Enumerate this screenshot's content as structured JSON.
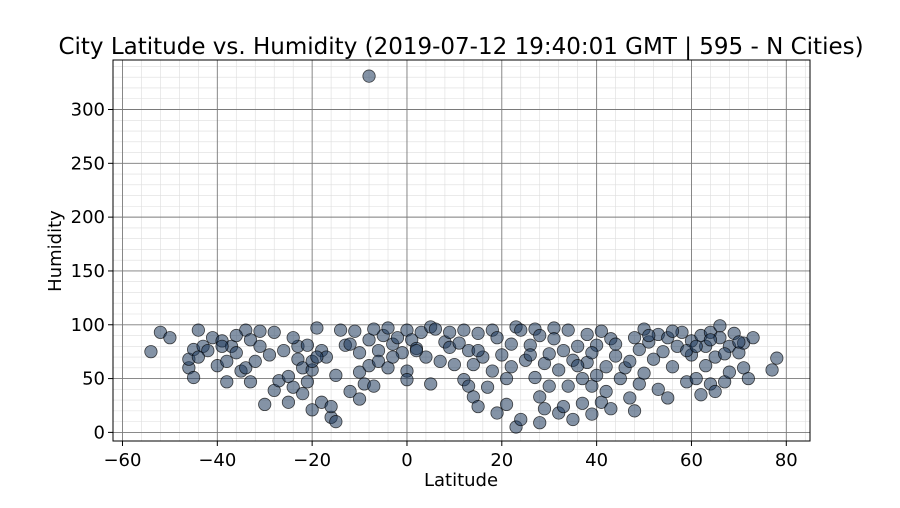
{
  "chart_data": {
    "type": "scatter",
    "title": "City Latitude vs. Humidity (2019-07-12 19:40:01 GMT | 595 - N Cities)",
    "xlabel": "Latitude",
    "ylabel": "Humidity",
    "xlim": [
      -62,
      85
    ],
    "ylim": [
      -8,
      346
    ],
    "xticks": [
      -60,
      -40,
      -20,
      0,
      20,
      40,
      60,
      80
    ],
    "xtick_labels": [
      "−60",
      "−40",
      "−20",
      "0",
      "20",
      "40",
      "60",
      "80"
    ],
    "yticks": [
      0,
      50,
      100,
      150,
      200,
      250,
      300
    ],
    "ytick_labels": [
      "0",
      "50",
      "100",
      "150",
      "200",
      "250",
      "300"
    ],
    "grid": true,
    "minor_grid": true,
    "marker_color": "#1f3b5c",
    "marker_edge_color": "#000000",
    "marker_alpha": 0.55,
    "points": [
      [
        -8,
        331
      ],
      [
        -54,
        75
      ],
      [
        -52,
        93
      ],
      [
        -50,
        88
      ],
      [
        -46,
        60
      ],
      [
        -46,
        68
      ],
      [
        -45,
        51
      ],
      [
        -45,
        77
      ],
      [
        -44,
        95
      ],
      [
        -43,
        80
      ],
      [
        -42,
        76
      ],
      [
        -41,
        88
      ],
      [
        -40,
        62
      ],
      [
        -39,
        85
      ],
      [
        -38,
        66
      ],
      [
        -38,
        47
      ],
      [
        -37,
        80
      ],
      [
        -36,
        74
      ],
      [
        -35,
        57
      ],
      [
        -34,
        95
      ],
      [
        -34,
        60
      ],
      [
        -33,
        47
      ],
      [
        -33,
        86
      ],
      [
        -32,
        66
      ],
      [
        -31,
        80
      ],
      [
        -31,
        94
      ],
      [
        -30,
        26
      ],
      [
        -29,
        72
      ],
      [
        -28,
        93
      ],
      [
        -28,
        39
      ],
      [
        -27,
        48
      ],
      [
        -26,
        76
      ],
      [
        -25,
        52
      ],
      [
        -25,
        28
      ],
      [
        -24,
        42
      ],
      [
        -23,
        68
      ],
      [
        -23,
        80
      ],
      [
        -22,
        36
      ],
      [
        -22,
        60
      ],
      [
        -21,
        47
      ],
      [
        -21,
        81
      ],
      [
        -20,
        21
      ],
      [
        -20,
        58
      ],
      [
        -20,
        66
      ],
      [
        -19,
        97
      ],
      [
        -18,
        28
      ],
      [
        -18,
        76
      ],
      [
        -17,
        70
      ],
      [
        -16,
        14
      ],
      [
        -16,
        24
      ],
      [
        -15,
        10
      ],
      [
        -15,
        53
      ],
      [
        -14,
        95
      ],
      [
        -13,
        81
      ],
      [
        -12,
        38
      ],
      [
        -11,
        94
      ],
      [
        -10,
        31
      ],
      [
        -10,
        56
      ],
      [
        -10,
        74
      ],
      [
        -9,
        45
      ],
      [
        -8,
        86
      ],
      [
        -8,
        62
      ],
      [
        -7,
        43
      ],
      [
        -6,
        76
      ],
      [
        -6,
        66
      ],
      [
        -5,
        90
      ],
      [
        -4,
        60
      ],
      [
        -4,
        97
      ],
      [
        -3,
        82
      ],
      [
        -2,
        88
      ],
      [
        -1,
        74
      ],
      [
        0,
        95
      ],
      [
        0,
        57
      ],
      [
        0,
        49
      ],
      [
        1,
        86
      ],
      [
        2,
        78
      ],
      [
        3,
        93
      ],
      [
        4,
        70
      ],
      [
        5,
        45
      ],
      [
        5,
        98
      ],
      [
        6,
        96
      ],
      [
        7,
        66
      ],
      [
        8,
        84
      ],
      [
        9,
        79
      ],
      [
        10,
        63
      ],
      [
        11,
        83
      ],
      [
        12,
        95
      ],
      [
        12,
        49
      ],
      [
        13,
        76
      ],
      [
        13,
        43
      ],
      [
        14,
        33
      ],
      [
        14,
        63
      ],
      [
        15,
        92
      ],
      [
        15,
        24
      ],
      [
        16,
        70
      ],
      [
        17,
        42
      ],
      [
        18,
        95
      ],
      [
        18,
        57
      ],
      [
        19,
        18
      ],
      [
        20,
        72
      ],
      [
        21,
        26
      ],
      [
        21,
        50
      ],
      [
        22,
        82
      ],
      [
        22,
        61
      ],
      [
        23,
        5
      ],
      [
        23,
        98
      ],
      [
        24,
        95
      ],
      [
        24,
        12
      ],
      [
        25,
        67
      ],
      [
        26,
        81
      ],
      [
        27,
        51
      ],
      [
        27,
        96
      ],
      [
        28,
        33
      ],
      [
        28,
        9
      ],
      [
        28,
        90
      ],
      [
        29,
        64
      ],
      [
        29,
        22
      ],
      [
        30,
        43
      ],
      [
        30,
        73
      ],
      [
        31,
        97
      ],
      [
        32,
        18
      ],
      [
        32,
        58
      ],
      [
        33,
        76
      ],
      [
        33,
        24
      ],
      [
        34,
        43
      ],
      [
        34,
        95
      ],
      [
        35,
        12
      ],
      [
        35,
        67
      ],
      [
        36,
        80
      ],
      [
        37,
        27
      ],
      [
        37,
        50
      ],
      [
        38,
        65
      ],
      [
        38,
        91
      ],
      [
        39,
        17
      ],
      [
        39,
        43
      ],
      [
        40,
        81
      ],
      [
        40,
        53
      ],
      [
        41,
        28
      ],
      [
        41,
        94
      ],
      [
        42,
        61
      ],
      [
        42,
        38
      ],
      [
        43,
        87
      ],
      [
        43,
        22
      ],
      [
        44,
        71
      ],
      [
        45,
        50
      ],
      [
        46,
        60
      ],
      [
        47,
        32
      ],
      [
        48,
        88
      ],
      [
        48,
        20
      ],
      [
        49,
        77
      ],
      [
        49,
        45
      ],
      [
        50,
        96
      ],
      [
        50,
        55
      ],
      [
        51,
        84
      ],
      [
        52,
        68
      ],
      [
        53,
        40
      ],
      [
        53,
        91
      ],
      [
        54,
        75
      ],
      [
        55,
        88
      ],
      [
        55,
        32
      ],
      [
        56,
        61
      ],
      [
        57,
        80
      ],
      [
        58,
        93
      ],
      [
        59,
        47
      ],
      [
        60,
        85
      ],
      [
        60,
        72
      ],
      [
        61,
        50
      ],
      [
        62,
        90
      ],
      [
        62,
        35
      ],
      [
        63,
        80
      ],
      [
        63,
        62
      ],
      [
        64,
        93
      ],
      [
        64,
        45
      ],
      [
        65,
        70
      ],
      [
        65,
        38
      ],
      [
        66,
        99
      ],
      [
        66,
        88
      ],
      [
        67,
        47
      ],
      [
        68,
        80
      ],
      [
        68,
        56
      ],
      [
        69,
        92
      ],
      [
        70,
        74
      ],
      [
        71,
        60
      ],
      [
        71,
        83
      ],
      [
        72,
        50
      ],
      [
        73,
        88
      ],
      [
        77,
        58
      ],
      [
        78,
        69
      ],
      [
        -44,
        70
      ],
      [
        -39,
        80
      ],
      [
        -36,
        90
      ],
      [
        -24,
        88
      ],
      [
        -19,
        70
      ],
      [
        -12,
        82
      ],
      [
        -7,
        96
      ],
      [
        -3,
        70
      ],
      [
        2,
        76
      ],
      [
        9,
        93
      ],
      [
        15,
        76
      ],
      [
        19,
        88
      ],
      [
        26,
        72
      ],
      [
        31,
        87
      ],
      [
        36,
        62
      ],
      [
        39,
        74
      ],
      [
        44,
        82
      ],
      [
        47,
        66
      ],
      [
        51,
        90
      ],
      [
        56,
        94
      ],
      [
        59,
        76
      ],
      [
        61,
        80
      ],
      [
        64,
        86
      ],
      [
        67,
        73
      ],
      [
        70,
        84
      ]
    ]
  }
}
